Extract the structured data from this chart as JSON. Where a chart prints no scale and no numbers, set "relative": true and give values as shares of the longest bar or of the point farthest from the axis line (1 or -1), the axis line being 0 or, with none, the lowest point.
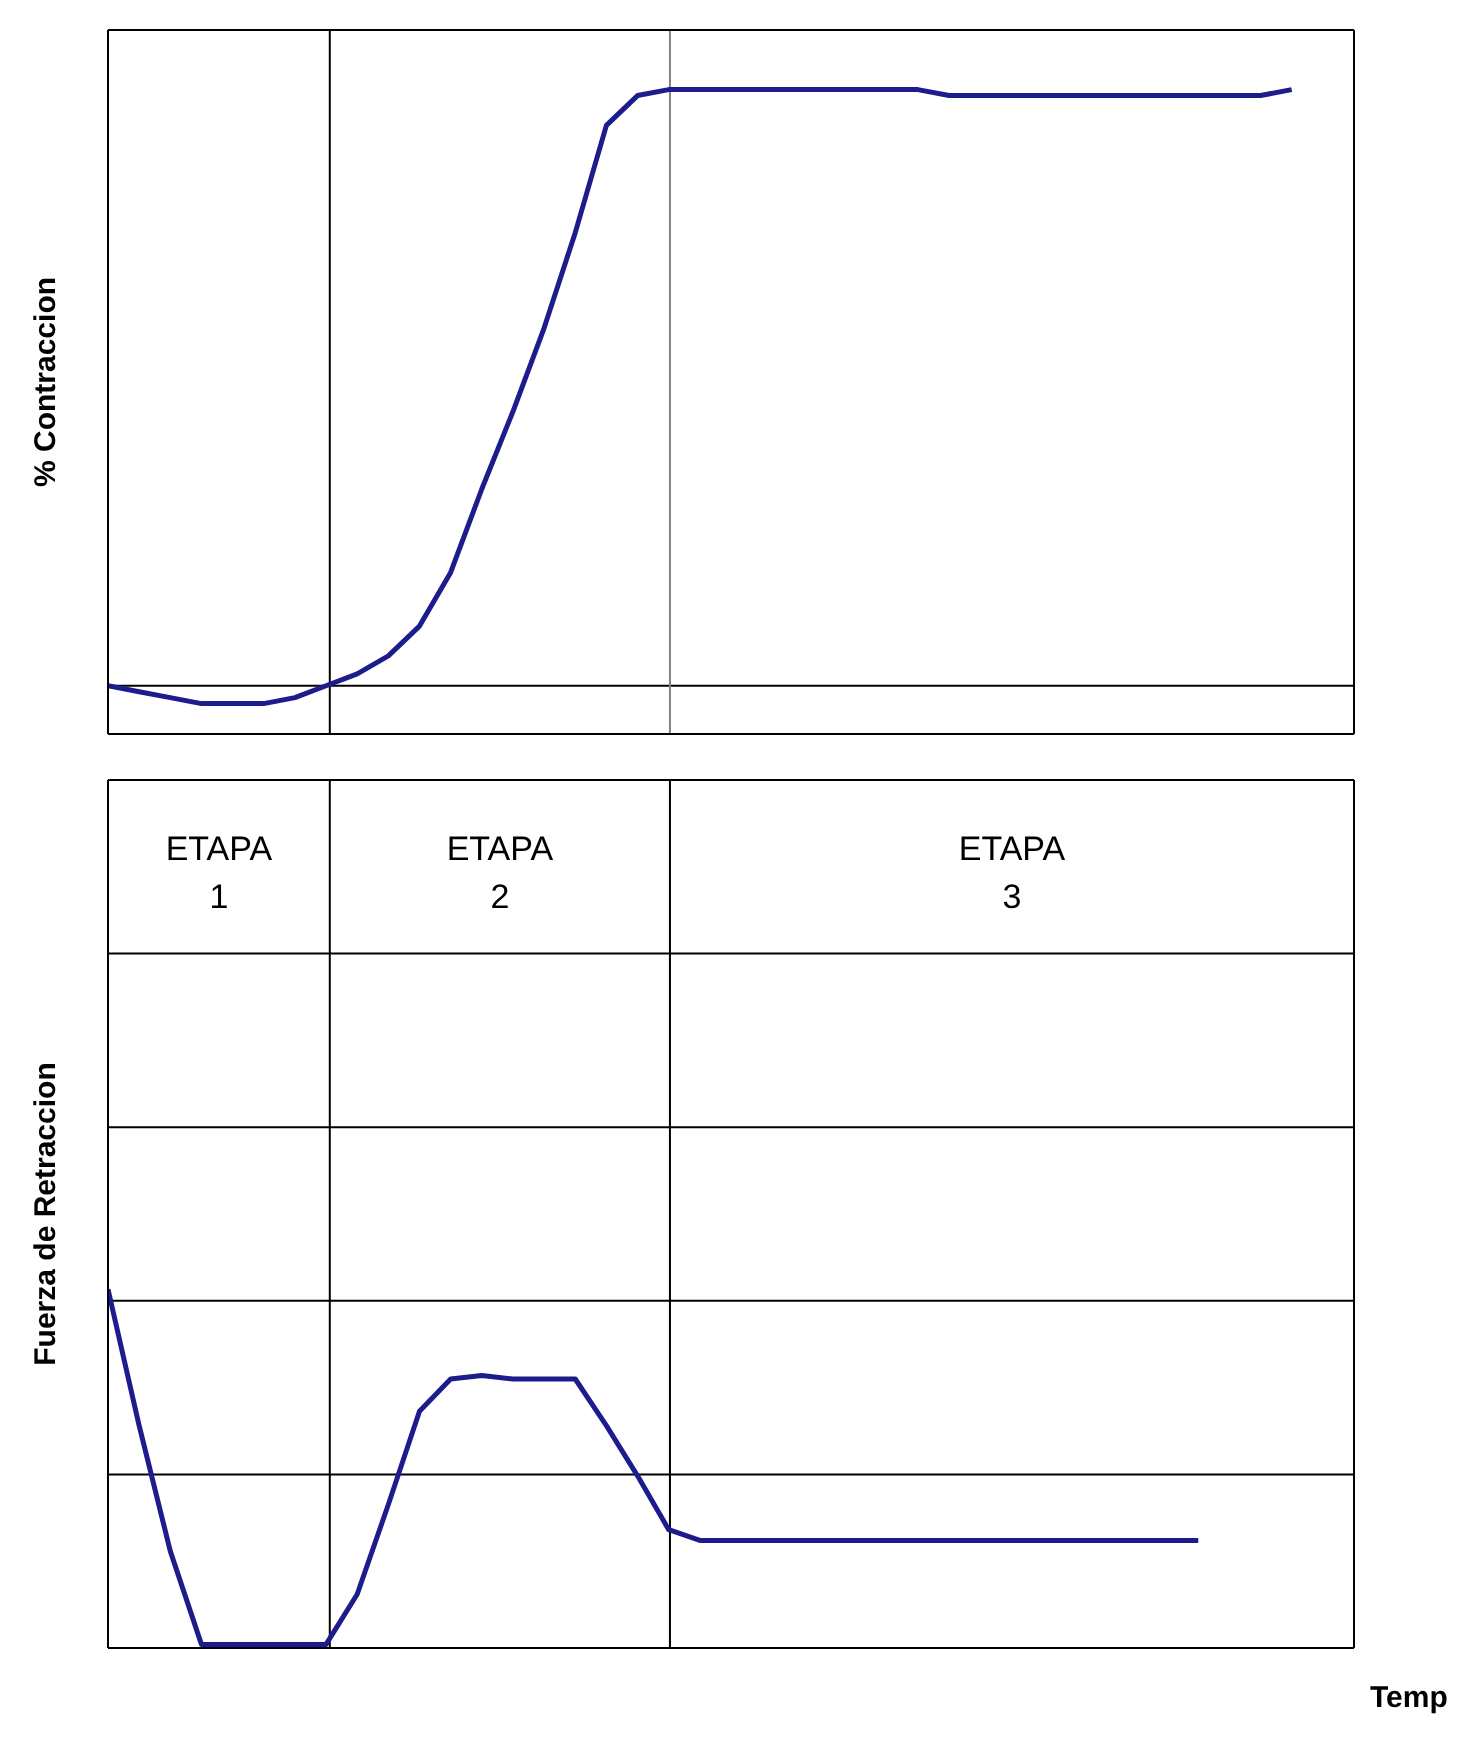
{
  "chart_data": [
    {
      "type": "line",
      "ylabel": "% Contraccion",
      "relative": true,
      "marker": "none",
      "line_style": "solid",
      "categories": [
        null,
        null,
        null,
        null,
        null,
        null,
        null,
        null,
        null,
        null,
        null,
        null,
        null,
        null,
        null,
        null,
        null,
        null,
        null,
        null,
        null,
        null,
        null,
        null,
        null,
        null,
        null,
        null,
        null,
        null,
        null,
        null,
        null,
        null,
        null,
        null,
        null,
        null,
        null,
        null,
        null
      ],
      "series": [
        {
          "color": "#1c1c8c",
          "values": [
            0,
            -0.01,
            -0.02,
            -0.03,
            -0.03,
            -0.03,
            -0.02,
            0,
            0.02,
            0.05,
            0.1,
            0.19,
            0.33,
            0.46,
            0.6,
            0.76,
            0.94,
            0.99,
            1,
            1,
            1,
            1,
            1,
            1,
            1,
            1,
            1,
            0.99,
            0.99,
            0.99,
            0.99,
            0.99,
            0.99,
            0.99,
            0.99,
            0.99,
            0.99,
            0.99,
            1,
            null,
            null
          ]
        }
      ]
    },
    {
      "type": "line",
      "ylabel": "Fuerza de Retraccion",
      "xlabel": "Temp",
      "relative": true,
      "marker": "none",
      "line_style": "solid",
      "categories": [
        null,
        null,
        null,
        null,
        null,
        null,
        null,
        null,
        null,
        null,
        null,
        null,
        null,
        null,
        null,
        null,
        null,
        null,
        null,
        null,
        null,
        null,
        null,
        null,
        null,
        null,
        null,
        null,
        null,
        null,
        null,
        null,
        null,
        null,
        null,
        null,
        null,
        null,
        null,
        null,
        null
      ],
      "annotations": [
        "ETAPA 1",
        "ETAPA 2",
        "ETAPA 3"
      ],
      "series": [
        {
          "color": "#1c1c8c",
          "values": [
            1,
            0.62,
            0.27,
            0.01,
            0.01,
            0.01,
            0.01,
            0.01,
            0.15,
            0.4,
            0.66,
            0.75,
            0.76,
            0.75,
            0.75,
            0.75,
            0.62,
            0.48,
            0.33,
            0.3,
            0.3,
            0.3,
            0.3,
            0.3,
            0.3,
            0.3,
            0.3,
            0.3,
            0.3,
            0.3,
            0.3,
            0.3,
            0.3,
            0.3,
            0.3,
            0.3,
            null,
            null,
            null,
            null,
            null
          ]
        }
      ]
    }
  ]
}
